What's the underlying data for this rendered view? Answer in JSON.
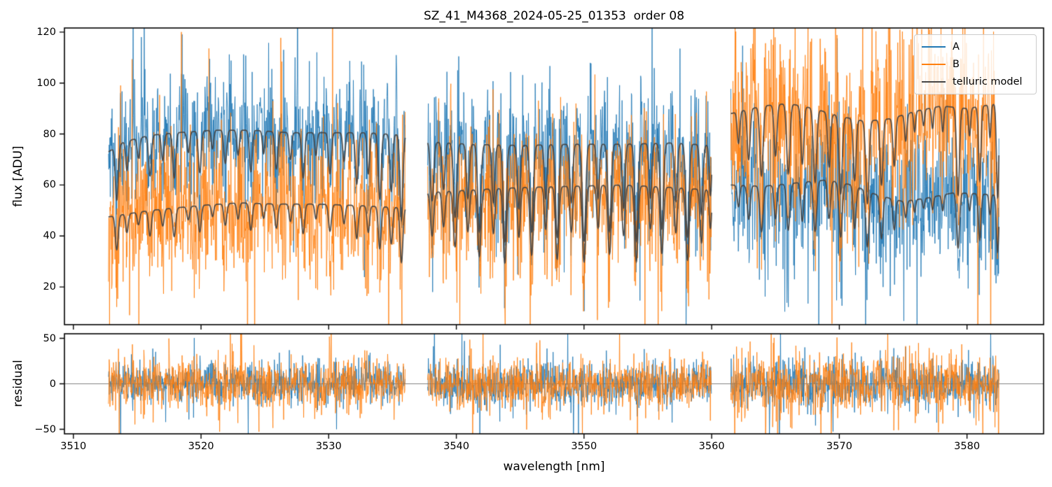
{
  "chart_data": {
    "type": "line",
    "title": "SZ_41_M4368_2024-05-25_01353  order 08",
    "xlabel": "wavelength [nm]",
    "ylabel_top": "flux [ADU]",
    "ylabel_bottom": "residual",
    "xlim": [
      3509.3,
      3586.0
    ],
    "ylim_top": [
      5.2,
      121.6
    ],
    "ylim_bottom": [
      -55,
      55
    ],
    "xticks": [
      3510,
      3520,
      3530,
      3540,
      3550,
      3560,
      3570,
      3580
    ],
    "yticks_top": [
      20,
      40,
      60,
      80,
      100,
      120
    ],
    "yticks_bottom": [
      -50,
      0,
      50
    ],
    "grid": false,
    "legend_position": "upper right",
    "zero_line_color": "#808080",
    "segments": [
      [
        3512.75,
        3536.0
      ],
      [
        3537.75,
        3560.0
      ],
      [
        3561.5,
        3582.5
      ]
    ],
    "sample_step_nm": 0.028,
    "model_step_nm": 0.015,
    "noise_seed": 12345,
    "noise_tail": {
      "prob": 0.08,
      "mult": 2.3
    },
    "series": [
      {
        "name": "A",
        "role": "spectrum",
        "color": "#1f77b4",
        "noise_sigma": [
          11,
          12,
          13
        ],
        "continuum": [
          [
            3512.75,
            73
          ],
          [
            3514,
            77
          ],
          [
            3516,
            79.5
          ],
          [
            3518,
            80.5
          ],
          [
            3521,
            81.5
          ],
          [
            3524,
            81.5
          ],
          [
            3527,
            80.5
          ],
          [
            3530,
            80.5
          ],
          [
            3533,
            80.5
          ],
          [
            3536,
            79.5
          ],
          [
            3537.75,
            77
          ],
          [
            3541,
            76
          ],
          [
            3545,
            75.5
          ],
          [
            3549,
            76
          ],
          [
            3553,
            76
          ],
          [
            3557,
            76.5
          ],
          [
            3560,
            75.5
          ],
          [
            3561.5,
            60
          ],
          [
            3564,
            59.5
          ],
          [
            3567,
            61
          ],
          [
            3569,
            62
          ],
          [
            3571,
            60
          ],
          [
            3573,
            56
          ],
          [
            3575,
            53.5
          ],
          [
            3577,
            55
          ],
          [
            3579,
            57
          ],
          [
            3581,
            56.5
          ],
          [
            3582.5,
            56
          ]
        ]
      },
      {
        "name": "B",
        "role": "spectrum",
        "color": "#ff7f0e",
        "noise_sigma": [
          14,
          13,
          17
        ],
        "continuum": [
          [
            3512.75,
            47.5
          ],
          [
            3514,
            48.5
          ],
          [
            3516,
            50
          ],
          [
            3518,
            51
          ],
          [
            3520,
            52
          ],
          [
            3523,
            53
          ],
          [
            3526,
            52.5
          ],
          [
            3529,
            52.5
          ],
          [
            3532,
            52
          ],
          [
            3536,
            51
          ],
          [
            3537.75,
            57
          ],
          [
            3541,
            58
          ],
          [
            3545,
            59
          ],
          [
            3549,
            59.5
          ],
          [
            3553,
            60
          ],
          [
            3557,
            59
          ],
          [
            3560,
            58
          ],
          [
            3561.5,
            88
          ],
          [
            3564,
            91
          ],
          [
            3566,
            92
          ],
          [
            3568,
            90
          ],
          [
            3570,
            87
          ],
          [
            3572,
            85
          ],
          [
            3574,
            86
          ],
          [
            3576,
            89
          ],
          [
            3578,
            91
          ],
          [
            3580,
            90
          ],
          [
            3582.5,
            92
          ]
        ]
      },
      {
        "name": "telluric model",
        "role": "model",
        "color": "#454545"
      }
    ],
    "telluric_lines": [
      [
        3513.4,
        0.28,
        0.16
      ],
      [
        3514.2,
        0.15,
        0.14
      ],
      [
        3515.1,
        0.1,
        0.14
      ],
      [
        3516.0,
        0.2,
        0.16
      ],
      [
        3517.0,
        0.13,
        0.15
      ],
      [
        3517.9,
        0.22,
        0.16
      ],
      [
        3519.0,
        0.1,
        0.15
      ],
      [
        3519.9,
        0.2,
        0.16
      ],
      [
        3520.9,
        0.09,
        0.13
      ],
      [
        3521.9,
        0.16,
        0.16
      ],
      [
        3522.9,
        0.12,
        0.14
      ],
      [
        3523.9,
        0.2,
        0.16
      ],
      [
        3524.9,
        0.11,
        0.13
      ],
      [
        3525.9,
        0.18,
        0.16
      ],
      [
        3527.0,
        0.13,
        0.14
      ],
      [
        3528.0,
        0.22,
        0.16
      ],
      [
        3529.0,
        0.11,
        0.13
      ],
      [
        3530.1,
        0.2,
        0.16
      ],
      [
        3531.2,
        0.14,
        0.14
      ],
      [
        3532.2,
        0.25,
        0.16
      ],
      [
        3533.1,
        0.2,
        0.14
      ],
      [
        3534.0,
        0.32,
        0.16
      ],
      [
        3534.9,
        0.28,
        0.15
      ],
      [
        3535.7,
        0.42,
        0.16
      ],
      [
        3538.1,
        0.3,
        0.18
      ],
      [
        3539.0,
        0.24,
        0.16
      ],
      [
        3539.9,
        0.38,
        0.18
      ],
      [
        3540.9,
        0.28,
        0.16
      ],
      [
        3541.8,
        0.45,
        0.18
      ],
      [
        3542.9,
        0.3,
        0.16
      ],
      [
        3543.8,
        0.5,
        0.18
      ],
      [
        3544.9,
        0.33,
        0.16
      ],
      [
        3545.9,
        0.45,
        0.18
      ],
      [
        3547.0,
        0.28,
        0.15
      ],
      [
        3547.9,
        0.48,
        0.18
      ],
      [
        3549.0,
        0.3,
        0.16
      ],
      [
        3550.0,
        0.5,
        0.18
      ],
      [
        3551.1,
        0.28,
        0.15
      ],
      [
        3552.0,
        0.45,
        0.18
      ],
      [
        3553.1,
        0.33,
        0.16
      ],
      [
        3554.1,
        0.5,
        0.18
      ],
      [
        3555.2,
        0.28,
        0.15
      ],
      [
        3556.1,
        0.44,
        0.18
      ],
      [
        3557.2,
        0.3,
        0.16
      ],
      [
        3558.1,
        0.48,
        0.18
      ],
      [
        3559.2,
        0.36,
        0.16
      ],
      [
        3559.9,
        0.26,
        0.13
      ],
      [
        3562.1,
        0.14,
        0.14
      ],
      [
        3562.9,
        0.22,
        0.16
      ],
      [
        3563.9,
        0.3,
        0.18
      ],
      [
        3565.0,
        0.22,
        0.16
      ],
      [
        3566.0,
        0.3,
        0.18
      ],
      [
        3567.1,
        0.25,
        0.16
      ],
      [
        3568.1,
        0.32,
        0.18
      ],
      [
        3569.2,
        0.24,
        0.16
      ],
      [
        3570.1,
        0.35,
        0.18
      ],
      [
        3571.2,
        0.28,
        0.16
      ],
      [
        3572.2,
        0.38,
        0.18
      ],
      [
        3573.3,
        0.3,
        0.16
      ],
      [
        3574.3,
        0.22,
        0.15
      ],
      [
        3575.2,
        0.12,
        0.13
      ],
      [
        3575.9,
        0.09,
        0.11
      ],
      [
        3576.6,
        0.07,
        0.11
      ],
      [
        3577.3,
        0.09,
        0.11
      ],
      [
        3578.1,
        0.11,
        0.12
      ],
      [
        3579.3,
        0.38,
        0.16
      ],
      [
        3580.2,
        0.12,
        0.12
      ],
      [
        3581.0,
        0.32,
        0.14
      ],
      [
        3581.8,
        0.14,
        0.11
      ],
      [
        3582.4,
        0.4,
        0.13
      ]
    ]
  }
}
